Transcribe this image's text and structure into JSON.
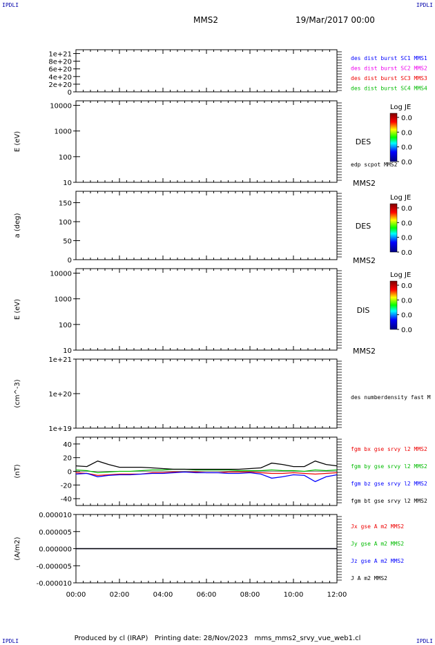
{
  "corner_labels": {
    "top_left": "IPDLI",
    "top_right": "IPDLI",
    "bottom_left": "IPDLI",
    "bottom_right": "IPDLI"
  },
  "header": {
    "spacecraft": "MMS2",
    "date": "19/Mar/2017 00:00"
  },
  "footer": {
    "produced_by": "Produced by cl (IRAP)",
    "printing_date": "Printing date: 28/Nov/2023",
    "filename": "mms_mms2_srvy_vue_web1.cl"
  },
  "colors": {
    "black": "#000000",
    "blue": "#0000ff",
    "magenta": "#ee00ee",
    "red": "#ee0000",
    "green": "#00bb00"
  },
  "chart_data": [
    {
      "type": "line",
      "panel": "dist",
      "ylabel": "",
      "ylim": [
        0,
        1.1e+21
      ],
      "yticks": [
        "0",
        "2e+20",
        "4e+20",
        "6e+20",
        "8e+20",
        "1e+21"
      ],
      "series": [
        {
          "name": "des dist burst SC1 MMS1",
          "color": "#0000ff"
        },
        {
          "name": "des dist burst SC2 MMS2",
          "color": "#ee00ee"
        },
        {
          "name": "des dist burst SC3 MMS3",
          "color": "#ee0000"
        },
        {
          "name": "des dist burst SC4 MMS4",
          "color": "#00bb00"
        }
      ],
      "values_note": "",
      "baseline_value": 0
    },
    {
      "type": "heatmap",
      "panel": "des_energy",
      "ylabel": "E (eV)",
      "yscale": "log",
      "ylim": [
        10,
        15000
      ],
      "yticks": [
        "10",
        "100",
        "1000",
        "10000"
      ],
      "label": "DES",
      "overlay": "edp scpot MMS2",
      "spacecraft_label": "MMS2",
      "colorbar": {
        "title": "Log JE",
        "ticks": [
          "0.0",
          "0.0",
          "0.0",
          "0.0"
        ]
      }
    },
    {
      "type": "heatmap",
      "panel": "des_pitch",
      "ylabel": "a (deg)",
      "ylim": [
        0,
        180
      ],
      "yticks": [
        "0",
        "50",
        "100",
        "150"
      ],
      "label": "DES",
      "spacecraft_label": "MMS2",
      "colorbar": {
        "title": "Log JE",
        "ticks": [
          "0.0",
          "0.0",
          "0.0",
          "0.0"
        ]
      }
    },
    {
      "type": "heatmap",
      "panel": "dis_energy",
      "ylabel": "E (eV)",
      "yscale": "log",
      "ylim": [
        10,
        15000
      ],
      "yticks": [
        "10",
        "100",
        "1000",
        "10000"
      ],
      "label": "DIS",
      "spacecraft_label": "MMS2",
      "colorbar": {
        "title": "Log JE",
        "ticks": [
          "0.0",
          "0.0",
          "0.0",
          "0.0"
        ]
      }
    },
    {
      "type": "line",
      "panel": "density",
      "ylabel": "(cm^-3)",
      "yscale": "log",
      "ylim": [
        1e+19,
        1e+21
      ],
      "yticks": [
        "1e+19",
        "1e+20",
        "1e+21"
      ],
      "series": [
        {
          "name": "des numberdensity fast M",
          "color": "#000000"
        }
      ]
    },
    {
      "type": "line",
      "panel": "fgm",
      "ylabel": "(nT)",
      "ylim": [
        -50,
        50
      ],
      "yticks": [
        "-40",
        "-20",
        "0",
        "20",
        "40"
      ],
      "x_hours": [
        0,
        0.5,
        1,
        1.5,
        2,
        2.5,
        3,
        3.5,
        4,
        4.5,
        5,
        5.5,
        6,
        6.5,
        7,
        7.5,
        8,
        8.5,
        9,
        9.5,
        10,
        10.5,
        11,
        11.5,
        12
      ],
      "series": [
        {
          "name": "fgm bx gse srvy l2 MMS2",
          "color": "#ee0000",
          "values": [
            -2,
            -3,
            -6,
            -5,
            -4,
            -4,
            -4,
            -2,
            -2,
            -1,
            -1,
            -1,
            -2,
            -2,
            -1,
            -1,
            -1,
            -2,
            -3,
            -3,
            -2,
            -3,
            -4,
            -3,
            -2
          ]
        },
        {
          "name": "fgm by gse srvy l2 MMS2",
          "color": "#00bb00",
          "values": [
            2,
            1,
            -2,
            -1,
            0,
            0,
            1,
            2,
            2,
            3,
            3,
            2,
            2,
            2,
            2,
            1,
            1,
            1,
            2,
            1,
            1,
            0,
            2,
            1,
            2
          ]
        },
        {
          "name": "fgm bz gse srvy l2 MMS2",
          "color": "#0000ff",
          "values": [
            -4,
            -3,
            -8,
            -6,
            -5,
            -5,
            -4,
            -3,
            -3,
            -2,
            -1,
            -2,
            -2,
            -2,
            -3,
            -3,
            -2,
            -4,
            -10,
            -8,
            -5,
            -6,
            -15,
            -8,
            -5
          ]
        },
        {
          "name": "fgm bt gse srvy l2 MMS2",
          "color": "#000000",
          "values": [
            8,
            7,
            15,
            10,
            6,
            6,
            6,
            5,
            4,
            3,
            3,
            3,
            3,
            3,
            3,
            3,
            4,
            5,
            12,
            10,
            7,
            7,
            15,
            10,
            8
          ]
        }
      ]
    },
    {
      "type": "line",
      "panel": "current",
      "ylabel": "(A/m2)",
      "ylim": [
        -1e-05,
        1e-05
      ],
      "yticks": [
        "-0.000010",
        "-0.000005",
        "0.000000",
        "0.000005",
        "0.000010"
      ],
      "x_hours": [
        0,
        2,
        4,
        6,
        8,
        10,
        12
      ],
      "series": [
        {
          "name": "Jx gse A m2 MMS2",
          "color": "#ee0000",
          "values": [
            0,
            0,
            0,
            0,
            0,
            0,
            0
          ]
        },
        {
          "name": "Jy gse A m2 MMS2",
          "color": "#00bb00",
          "values": [
            0,
            0,
            0,
            0,
            0,
            0,
            0
          ]
        },
        {
          "name": "Jz gse A m2 MMS2",
          "color": "#0000ff",
          "values": [
            0,
            0,
            0,
            0,
            0,
            0,
            0
          ]
        },
        {
          "name": "J A m2 MMS2",
          "color": "#000000",
          "values": [
            0,
            0,
            0,
            0,
            0,
            0,
            0
          ]
        }
      ]
    }
  ],
  "x_axis": {
    "range_hours": [
      0,
      12
    ],
    "ticks": [
      "00:00",
      "02:00",
      "04:00",
      "06:00",
      "08:00",
      "10:00",
      "12:00"
    ]
  }
}
